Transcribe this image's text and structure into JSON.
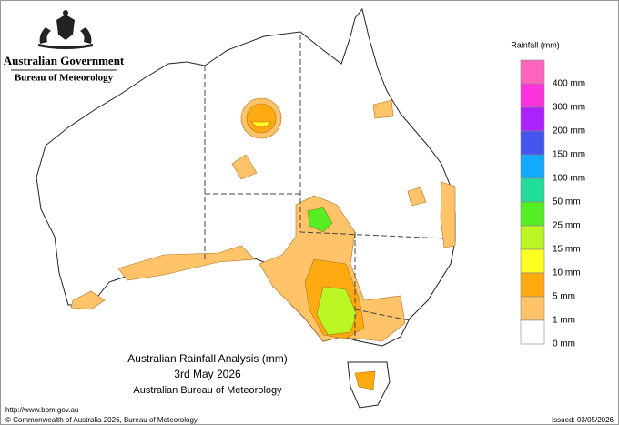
{
  "header": {
    "government": "Australian Government",
    "agency": "Bureau of Meteorology"
  },
  "map": {
    "title": "Australian Rainfall Analysis (mm)",
    "date": "3rd May 2026",
    "source": "Australian Bureau of Meteorology"
  },
  "legend": {
    "title": "Rainfall (mm)",
    "items": [
      {
        "color": "#ff66bb",
        "label": "400 mm"
      },
      {
        "color": "#ff33dd",
        "label": "300 mm"
      },
      {
        "color": "#aa22ff",
        "label": "200 mm"
      },
      {
        "color": "#4455ee",
        "label": "150 mm"
      },
      {
        "color": "#11aaff",
        "label": "100 mm"
      },
      {
        "color": "#22dd99",
        "label": "50 mm"
      },
      {
        "color": "#55ee22",
        "label": "25 mm"
      },
      {
        "color": "#bbf522",
        "label": "15 mm"
      },
      {
        "color": "#ffff22",
        "label": "10 mm"
      },
      {
        "color": "#ffaa11",
        "label": "5 mm"
      },
      {
        "color": "#ffc46a",
        "label": "1 mm"
      },
      {
        "color": "#ffffff",
        "label": "0 mm"
      }
    ]
  },
  "footer": {
    "url": "http://www.bom.gov.au",
    "copyright": "© Commonwealth of Australia 2026, Bureau of Meteorology",
    "issued": "Issued: 03/05/2026"
  }
}
